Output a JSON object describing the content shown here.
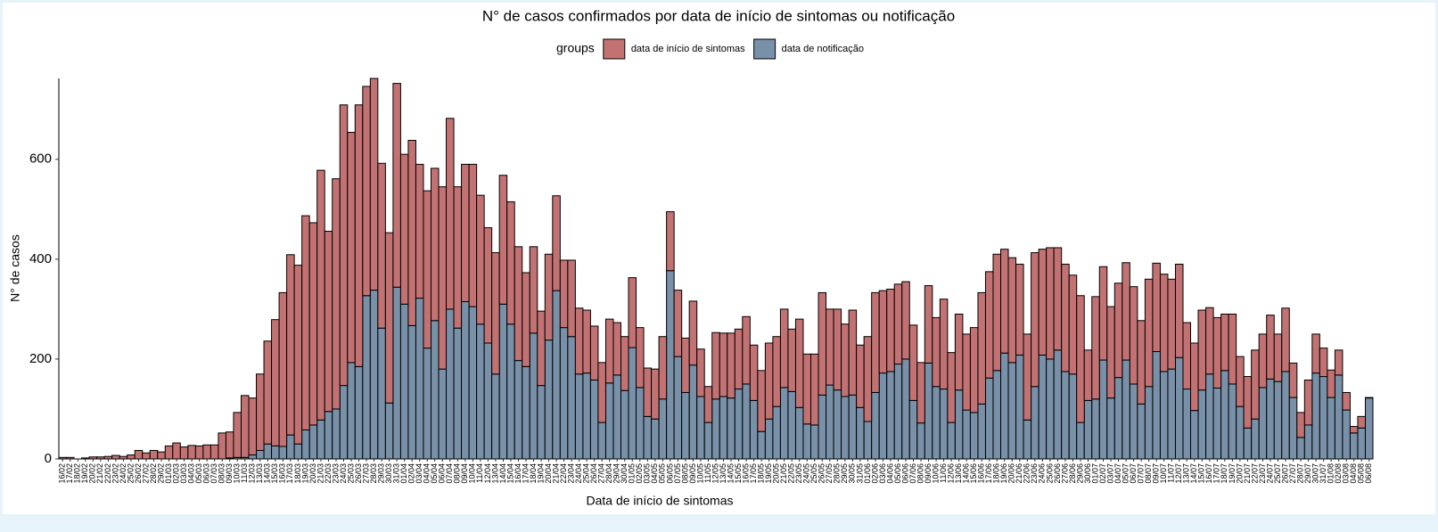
{
  "chart_data": {
    "type": "bar",
    "stacked": true,
    "title": "N° de casos confirmados por data de início de sintomas ou notificação",
    "legend_title": "groups",
    "x_label": "Data de início de sintomas",
    "y_label": "N° de casos",
    "ylim": [
      0,
      762
    ],
    "yticks": [
      0,
      200,
      400,
      600
    ],
    "grid": false,
    "categories": [
      "16/02",
      "17/02",
      "18/02",
      "19/02",
      "20/02",
      "21/02",
      "22/02",
      "23/02",
      "24/02",
      "25/02",
      "26/02",
      "27/02",
      "28/02",
      "29/02",
      "01/03",
      "02/03",
      "03/03",
      "04/03",
      "05/03",
      "06/03",
      "07/03",
      "08/03",
      "09/03",
      "10/03",
      "11/03",
      "12/03",
      "13/03",
      "14/03",
      "15/03",
      "16/03",
      "17/03",
      "18/03",
      "19/03",
      "20/03",
      "21/03",
      "22/03",
      "23/03",
      "24/03",
      "25/03",
      "26/03",
      "27/03",
      "28/03",
      "29/03",
      "30/03",
      "31/03",
      "01/04",
      "02/04",
      "03/04",
      "04/04",
      "05/04",
      "06/04",
      "07/04",
      "08/04",
      "09/04",
      "10/04",
      "11/04",
      "12/04",
      "13/04",
      "14/04",
      "15/04",
      "16/04",
      "17/04",
      "18/04",
      "19/04",
      "20/04",
      "21/04",
      "22/04",
      "23/04",
      "24/04",
      "25/04",
      "26/04",
      "27/04",
      "28/04",
      "29/04",
      "30/04",
      "01/05",
      "02/05",
      "03/05",
      "04/05",
      "05/05",
      "06/05",
      "07/05",
      "08/05",
      "09/05",
      "10/05",
      "11/05",
      "12/05",
      "13/05",
      "14/05",
      "15/05",
      "16/05",
      "17/05",
      "18/05",
      "19/05",
      "20/05",
      "21/05",
      "22/05",
      "23/05",
      "24/05",
      "25/05",
      "26/05",
      "27/05",
      "28/05",
      "29/05",
      "30/05",
      "31/05",
      "01/06",
      "02/06",
      "03/06",
      "04/06",
      "05/06",
      "06/06",
      "07/06",
      "08/06",
      "09/06",
      "10/06",
      "11/06",
      "12/06",
      "13/06",
      "14/06",
      "15/06",
      "16/06",
      "17/06",
      "18/06",
      "19/06",
      "20/06",
      "21/06",
      "22/06",
      "23/06",
      "24/06",
      "25/06",
      "26/06",
      "27/06",
      "28/06",
      "29/06",
      "30/06",
      "01/07",
      "02/07",
      "03/07",
      "04/07",
      "05/07",
      "06/07",
      "07/07",
      "08/07",
      "09/07",
      "10/07",
      "11/07",
      "12/07",
      "13/07",
      "14/07",
      "15/07",
      "16/07",
      "17/07",
      "18/07",
      "19/07",
      "20/07",
      "21/07",
      "22/07",
      "23/07",
      "24/07",
      "25/07",
      "26/07",
      "27/07",
      "28/07",
      "29/07",
      "30/07",
      "31/07",
      "01/08",
      "02/08",
      "03/08",
      "04/08",
      "05/08",
      "06/08"
    ],
    "series": [
      {
        "name": "data de início de sintomas",
        "color": "#c27272",
        "values": [
          3,
          3,
          0,
          2,
          4,
          4,
          5,
          7,
          5,
          8,
          17,
          12,
          17,
          14,
          26,
          32,
          24,
          27,
          26,
          28,
          28,
          52,
          52,
          90,
          124,
          114,
          153,
          206,
          253,
          308,
          361,
          358,
          429,
          405,
          500,
          361,
          461,
          562,
          461,
          524,
          419,
          424,
          330,
          341,
          408,
          300,
          371,
          268,
          315,
          305,
          365,
          382,
          283,
          275,
          285,
          258,
          231,
          243,
          258,
          245,
          228,
          188,
          173,
          149,
          172,
          190,
          135,
          153,
          132,
          126,
          108,
          120,
          128,
          105,
          108,
          140,
          120,
          97,
          100,
          125,
          118,
          133,
          109,
          128,
          95,
          72,
          133,
          127,
          130,
          120,
          135,
          111,
          122,
          152,
          140,
          157,
          125,
          177,
          140,
          142,
          205,
          152,
          162,
          145,
          170,
          125,
          170,
          200,
          165,
          165,
          160,
          155,
          151,
          121,
          155,
          138,
          180,
          140,
          152,
          152,
          170,
          223,
          213,
          233,
          208,
          210,
          182,
          172,
          268,
          212,
          223,
          205,
          215,
          198,
          254,
          101,
          205,
          187,
          183,
          189,
          195,
          195,
          167,
          215,
          177,
          195,
          180,
          187,
          133,
          135,
          160,
          133,
          141,
          113,
          140,
          100,
          103,
          138,
          107,
          128,
          95,
          127,
          69,
          50,
          90,
          78,
          57,
          55,
          50,
          35,
          13,
          23,
          1
        ]
      },
      {
        "name": "data de notificação",
        "color": "#7890a8",
        "values": [
          0,
          0,
          0,
          0,
          0,
          0,
          0,
          0,
          0,
          0,
          0,
          0,
          0,
          0,
          0,
          0,
          0,
          0,
          0,
          0,
          0,
          0,
          2,
          3,
          3,
          8,
          17,
          30,
          26,
          25,
          48,
          30,
          58,
          68,
          78,
          95,
          100,
          147,
          193,
          185,
          327,
          338,
          262,
          112,
          344,
          310,
          267,
          322,
          222,
          277,
          180,
          300,
          262,
          315,
          305,
          270,
          232,
          170,
          310,
          270,
          197,
          185,
          252,
          147,
          238,
          337,
          263,
          245,
          170,
          172,
          158,
          73,
          152,
          168,
          137,
          223,
          143,
          85,
          80,
          120,
          377,
          205,
          133,
          188,
          125,
          73,
          120,
          125,
          122,
          140,
          150,
          117,
          55,
          80,
          105,
          143,
          135,
          103,
          70,
          68,
          128,
          148,
          138,
          125,
          128,
          103,
          75,
          133,
          172,
          175,
          190,
          200,
          117,
          72,
          192,
          145,
          140,
          73,
          138,
          98,
          93,
          110,
          162,
          177,
          212,
          193,
          208,
          78,
          145,
          208,
          200,
          218,
          175,
          170,
          73,
          117,
          120,
          198,
          122,
          163,
          198,
          150,
          110,
          145,
          215,
          175,
          180,
          203,
          140,
          97,
          138,
          170,
          142,
          177,
          150,
          105,
          62,
          80,
          143,
          160,
          155,
          175,
          123,
          43,
          68,
          172,
          165,
          123,
          168,
          98,
          52,
          62,
          122
        ]
      }
    ]
  }
}
